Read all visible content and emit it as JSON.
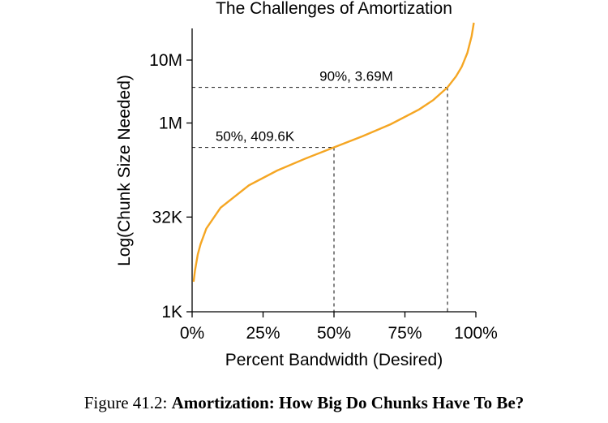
{
  "chart_data": {
    "type": "line",
    "title": "The Challenges of Amortization",
    "xlabel": "Percent Bandwidth (Desired)",
    "ylabel": "Log(Chunk Size Needed)",
    "x_ticks": [
      "0%",
      "25%",
      "50%",
      "75%",
      "100%"
    ],
    "y_ticks": [
      "1K",
      "32K",
      "1M",
      "10M"
    ],
    "x_tick_values": [
      0,
      25,
      50,
      75,
      100
    ],
    "y_tick_values": [
      1000,
      32000,
      1000000,
      10000000
    ],
    "xlim": [
      0,
      100
    ],
    "ylim": [
      1000,
      40000000
    ],
    "y_scale": "log",
    "series": [
      {
        "color": "#f5a623",
        "points": [
          [
            0.5,
            3000
          ],
          [
            1,
            4500
          ],
          [
            2,
            8200
          ],
          [
            3,
            12000
          ],
          [
            5,
            21000
          ],
          [
            10,
            45000
          ],
          [
            20,
            102000
          ],
          [
            30,
            176000
          ],
          [
            40,
            273000
          ],
          [
            50,
            409600
          ],
          [
            60,
            614000
          ],
          [
            70,
            956000
          ],
          [
            80,
            1640000
          ],
          [
            85,
            2320000
          ],
          [
            90,
            3690000
          ],
          [
            93,
            5500000
          ],
          [
            95,
            7800000
          ],
          [
            97,
            13000000
          ],
          [
            98.5,
            24000000
          ],
          [
            99.3,
            40000000
          ]
        ]
      }
    ],
    "annotations": [
      {
        "text": "90%, 3.69M",
        "x": 90,
        "y": 3690000
      },
      {
        "text": "50%, 409.6K",
        "x": 50,
        "y": 409600
      }
    ]
  },
  "caption": {
    "prefix": "Figure 41.2:",
    "bold": "Amortization: How Big Do Chunks Have To Be?"
  }
}
